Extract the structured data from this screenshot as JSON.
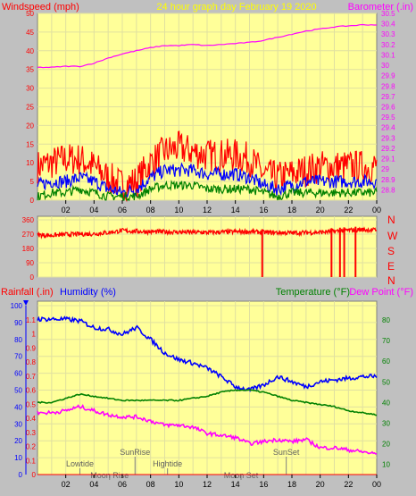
{
  "colors": {
    "background": "#c0c0c0",
    "plot_bg": "#ffff99",
    "grid": "#e0e0a0",
    "wind_gust": "#ff0000",
    "wind_avg": "#0000ff",
    "wind_low": "#008000",
    "barometer": "#ff00ff",
    "direction": "#ff0000",
    "rain": "#ff0000",
    "humidity": "#0000ff",
    "temperature": "#008000",
    "dewpoint": "#ff00ff",
    "tide_text": "#606060"
  },
  "top_panel": {
    "left_title": "Windspeed (mph)",
    "center_title": "24 hour graph day   February 19 2020",
    "right_title": "Barometer (.in)"
  },
  "middle_panel": {
    "direction_labels": [
      "N",
      "W",
      "S",
      "E",
      "N"
    ]
  },
  "bottom_panel": {
    "rain_title": "Rainfall (.in)",
    "humidity_title": "Humidity (%)",
    "temperature_title": "Temperature (°F)",
    "dewpoint_title": "Dew Point (°F)",
    "events": [
      {
        "label": "Lowtide",
        "hour": 3.0,
        "row": 0
      },
      {
        "label": "Moon Rise",
        "hour": 5.1,
        "row": 1
      },
      {
        "label": "SunRise",
        "hour": 6.9,
        "row": 2
      },
      {
        "label": "Hightide",
        "hour": 9.2,
        "row": 0
      },
      {
        "label": "Moon Set",
        "hour": 14.4,
        "row": 1
      },
      {
        "label": "SunSet",
        "hour": 17.6,
        "row": 2
      }
    ]
  },
  "chart_data": [
    {
      "type": "line",
      "name": "wind-barometer",
      "title": "24 hour graph day   February 19 2020",
      "x_ticks": [
        "02",
        "04",
        "06",
        "08",
        "10",
        "12",
        "14",
        "16",
        "18",
        "20",
        "22",
        "00"
      ],
      "x_range": [
        0,
        24
      ],
      "ylabel_left": "Windspeed (mph)",
      "ylim_left": [
        0,
        50
      ],
      "y_ticks_left": [
        "50",
        "45",
        "40",
        "35",
        "30",
        "25",
        "20",
        "15",
        "10",
        "5",
        "0"
      ],
      "ylabel_right": "Barometer (.in)",
      "ylim_right": [
        28.7,
        30.5
      ],
      "y_ticks_right": [
        "30.5",
        "30.4",
        "30.3",
        "30.2",
        "30.1",
        "30",
        "29.9",
        "29.8",
        "29.7",
        "29.6",
        "29.5",
        "29.4",
        "29.3",
        "29.2",
        "29.1",
        "29",
        "28.9",
        "28.8"
      ],
      "series": [
        {
          "axis": "left",
          "hours": [
            0,
            1,
            2,
            3,
            4,
            5,
            6,
            7,
            8,
            9,
            10,
            11,
            12,
            13,
            14,
            15,
            16,
            17,
            18,
            19,
            20,
            21,
            22,
            23,
            24
          ],
          "values": [
            9,
            10,
            11,
            11,
            9,
            6,
            4,
            5,
            10,
            13,
            14,
            13,
            12,
            12,
            12,
            11,
            7,
            6,
            7,
            8,
            9,
            9,
            9,
            9,
            9
          ]
        },
        {
          "axis": "left",
          "hours": [
            0,
            1,
            2,
            3,
            4,
            5,
            6,
            7,
            8,
            9,
            10,
            11,
            12,
            13,
            14,
            15,
            16,
            17,
            18,
            19,
            20,
            21,
            22,
            23,
            24
          ],
          "values": [
            4,
            5,
            5,
            6,
            5,
            3,
            2,
            3,
            6,
            8,
            8,
            8,
            7,
            7,
            7,
            6,
            4,
            3,
            4,
            5,
            5,
            5,
            5,
            5,
            5
          ]
        },
        {
          "axis": "left",
          "hours": [
            0,
            1,
            2,
            3,
            4,
            5,
            6,
            7,
            8,
            9,
            10,
            11,
            12,
            13,
            14,
            15,
            16,
            17,
            18,
            19,
            20,
            21,
            22,
            23,
            24
          ],
          "values": [
            1,
            2,
            2,
            3,
            2,
            1,
            1,
            1,
            3,
            4,
            4,
            4,
            3,
            3,
            3,
            3,
            2,
            1,
            2,
            2,
            2,
            2,
            2,
            2,
            2
          ]
        },
        {
          "axis": "right",
          "hours": [
            0,
            1,
            2,
            3,
            4,
            5,
            6,
            7,
            8,
            9,
            10,
            11,
            12,
            13,
            14,
            15,
            16,
            17,
            18,
            19,
            20,
            21,
            22,
            23,
            24
          ],
          "values": [
            29.98,
            29.98,
            29.99,
            29.99,
            30.02,
            30.07,
            30.11,
            30.14,
            30.17,
            30.19,
            30.19,
            30.2,
            30.19,
            30.2,
            30.21,
            30.22,
            30.24,
            30.27,
            30.3,
            30.33,
            30.35,
            30.37,
            30.38,
            30.39,
            30.39
          ]
        }
      ]
    },
    {
      "type": "scatter",
      "name": "wind-direction",
      "x_ticks": [
        "02",
        "04",
        "06",
        "08",
        "10",
        "12",
        "14",
        "16",
        "18",
        "20",
        "22",
        "00"
      ],
      "x_range": [
        0,
        24
      ],
      "ylim": [
        0,
        360
      ],
      "y_ticks": [
        "360",
        "270",
        "180",
        "90",
        "0"
      ],
      "series": [
        {
          "hours": [
            0,
            1,
            2,
            3,
            4,
            5,
            6,
            7,
            8,
            9,
            10,
            11,
            12,
            13,
            14,
            15,
            16,
            17,
            18,
            19,
            20,
            21,
            22,
            23,
            24
          ],
          "values": [
            265,
            262,
            268,
            270,
            272,
            280,
            292,
            288,
            284,
            285,
            283,
            282,
            280,
            283,
            285,
            286,
            281,
            280,
            278,
            280,
            282,
            288,
            295,
            298,
            296
          ]
        }
      ],
      "spikes": [
        {
          "hour": 15.9,
          "value": 0
        },
        {
          "hour": 20.8,
          "value": 0
        },
        {
          "hour": 21.4,
          "value": 0
        },
        {
          "hour": 21.7,
          "value": 0
        },
        {
          "hour": 22.5,
          "value": 0
        }
      ]
    },
    {
      "type": "line",
      "name": "rain-humidity-temperature",
      "x_ticks": [
        "02",
        "04",
        "06",
        "08",
        "10",
        "12",
        "14",
        "16",
        "18",
        "20",
        "22",
        "00"
      ],
      "x_range": [
        0,
        24
      ],
      "ylabel_left_outer": "Rainfall (.in)",
      "ylim_rain": [
        0,
        1.2
      ],
      "y_ticks_rain": [
        "1.1",
        "1",
        "0.9",
        "0.8",
        "0.7",
        "0.6",
        "0.5",
        "0.4",
        "0.3",
        "0.2",
        "0.1",
        "0"
      ],
      "ylabel_left_inner": "Humidity (%)",
      "ylim_humidity": [
        0,
        100
      ],
      "y_ticks_humidity": [
        "100",
        "90",
        "80",
        "70",
        "60",
        "50",
        "40",
        "30",
        "20",
        "10",
        "0"
      ],
      "ylabel_right": "Temperature (°F)",
      "ylim_temp": [
        5,
        87
      ],
      "y_ticks_temp": [
        "80",
        "70",
        "60",
        "50",
        "40",
        "30",
        "20",
        "10"
      ],
      "series": [
        {
          "unit": "humidity",
          "hours": [
            0,
            1,
            2,
            3,
            4,
            5,
            6,
            7,
            8,
            9,
            10,
            11,
            12,
            13,
            14,
            15,
            16,
            17,
            18,
            19,
            20,
            21,
            22,
            23,
            24
          ],
          "values": [
            92,
            92,
            92,
            91,
            87,
            86,
            83,
            87,
            80,
            72,
            68,
            66,
            63,
            58,
            52,
            50,
            53,
            58,
            55,
            52,
            55,
            56,
            57,
            58,
            58
          ]
        },
        {
          "unit": "temp",
          "hours": [
            0,
            1,
            2,
            3,
            4,
            5,
            6,
            7,
            8,
            9,
            10,
            11,
            12,
            13,
            14,
            15,
            16,
            17,
            18,
            19,
            20,
            21,
            22,
            23,
            24
          ],
          "values": [
            40,
            40,
            42,
            44,
            43,
            42,
            41,
            41,
            41,
            41,
            41,
            42,
            43,
            45,
            46,
            46,
            45,
            43,
            41,
            40,
            39,
            38,
            36,
            35,
            34
          ]
        },
        {
          "unit": "temp",
          "hours": [
            0,
            1,
            2,
            3,
            4,
            5,
            6,
            7,
            8,
            9,
            10,
            11,
            12,
            13,
            14,
            15,
            16,
            17,
            18,
            19,
            20,
            21,
            22,
            23,
            24
          ],
          "values": [
            35,
            35,
            36,
            38,
            36,
            34,
            33,
            33,
            31,
            29,
            29,
            28,
            25,
            24,
            23,
            20,
            21,
            22,
            21,
            22,
            18,
            18,
            17,
            16,
            15
          ]
        },
        {
          "unit": "rain",
          "hours": [
            0,
            24
          ],
          "values": [
            0,
            0
          ]
        }
      ]
    }
  ]
}
